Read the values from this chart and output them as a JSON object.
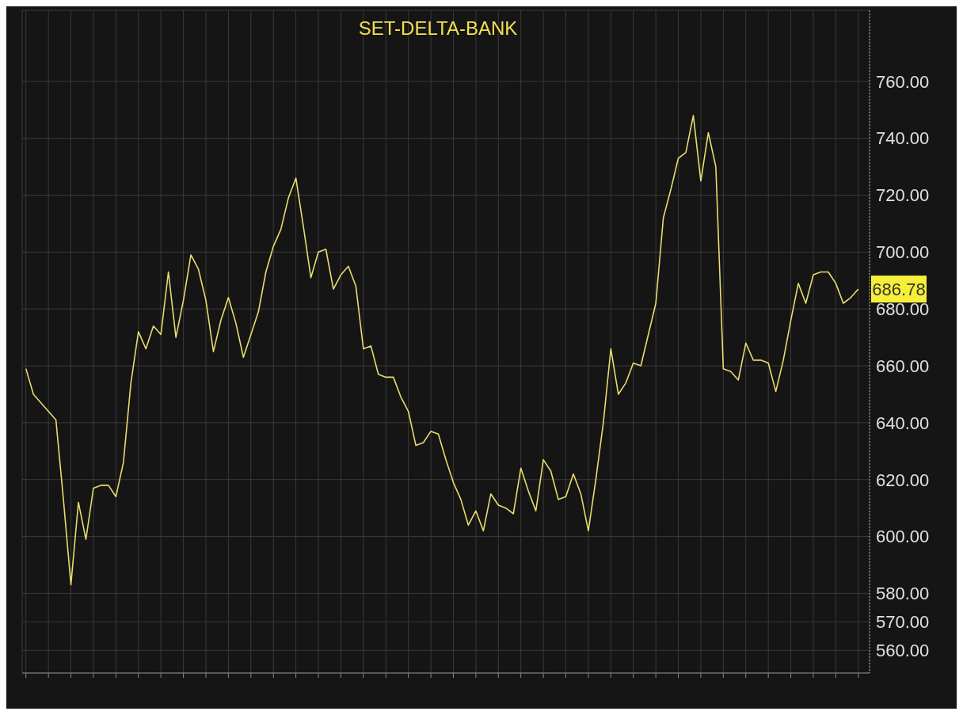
{
  "chart_data": {
    "type": "line",
    "title": "SET-DELTA-BANK",
    "categories": [
      null,
      null,
      null,
      null,
      null,
      null,
      null,
      null,
      null,
      null,
      null,
      null,
      null,
      null,
      null,
      null,
      null,
      null,
      null,
      null,
      null,
      null,
      null,
      null,
      null,
      null,
      null,
      null,
      null,
      null,
      null,
      null,
      null,
      null,
      null,
      null,
      null,
      null,
      null,
      null,
      null,
      null,
      null,
      null,
      null,
      null,
      null,
      null,
      null,
      null,
      null,
      null,
      null,
      null,
      null,
      null,
      null,
      null,
      null,
      null,
      null,
      null,
      null,
      null,
      null,
      null,
      null,
      null,
      null,
      null,
      null,
      null,
      null,
      null,
      null,
      null,
      null,
      null,
      null,
      null,
      null,
      null,
      null,
      null,
      null,
      null,
      null,
      null,
      null,
      null,
      null,
      null,
      null,
      null,
      null,
      null,
      null,
      null,
      null,
      null,
      null,
      null,
      null,
      null,
      null,
      null,
      null,
      null,
      null,
      null,
      null,
      null
    ],
    "series": [
      {
        "color": "#e8dc6e",
        "values": [
          659,
          650,
          647,
          644,
          641,
          613,
          583,
          612,
          599,
          617,
          618,
          618,
          614,
          626,
          654,
          672,
          666,
          674,
          671,
          693,
          670,
          683,
          699,
          694,
          683,
          665,
          676,
          684,
          675,
          663,
          671,
          679,
          693,
          702,
          708,
          719,
          726,
          709,
          691,
          700,
          701,
          687,
          692,
          695,
          688,
          666,
          667,
          657,
          656,
          656,
          649,
          644,
          632,
          633,
          637,
          636,
          627,
          619,
          613,
          604,
          609,
          602,
          615,
          611,
          610,
          608,
          624,
          616,
          609,
          627,
          623,
          613,
          614,
          622,
          615,
          602,
          620,
          640,
          666,
          650,
          654,
          661,
          660,
          671,
          682,
          712,
          722,
          733,
          735,
          748,
          725,
          742,
          730,
          659,
          658,
          655,
          668,
          662,
          662,
          661,
          651,
          662,
          676,
          689,
          682,
          692,
          693,
          693,
          689,
          682,
          684,
          687
        ]
      }
    ],
    "ylim": [
      552,
      785
    ],
    "yticks": [
      {
        "value": 760,
        "label": "760.00"
      },
      {
        "value": 740,
        "label": "740.00"
      },
      {
        "value": 720,
        "label": "720.00"
      },
      {
        "value": 700,
        "label": "700.00"
      },
      {
        "value": 680,
        "label": "680.00"
      },
      {
        "value": 660,
        "label": "660.00"
      },
      {
        "value": 640,
        "label": "640.00"
      },
      {
        "value": 620,
        "label": "620.00"
      },
      {
        "value": 600,
        "label": "600.00"
      },
      {
        "value": 580,
        "label": "580.00"
      },
      {
        "value": 570,
        "label": "570.00"
      },
      {
        "value": 560,
        "label": "560.00"
      }
    ],
    "grid": true,
    "annotations": [
      "686.78"
    ]
  }
}
